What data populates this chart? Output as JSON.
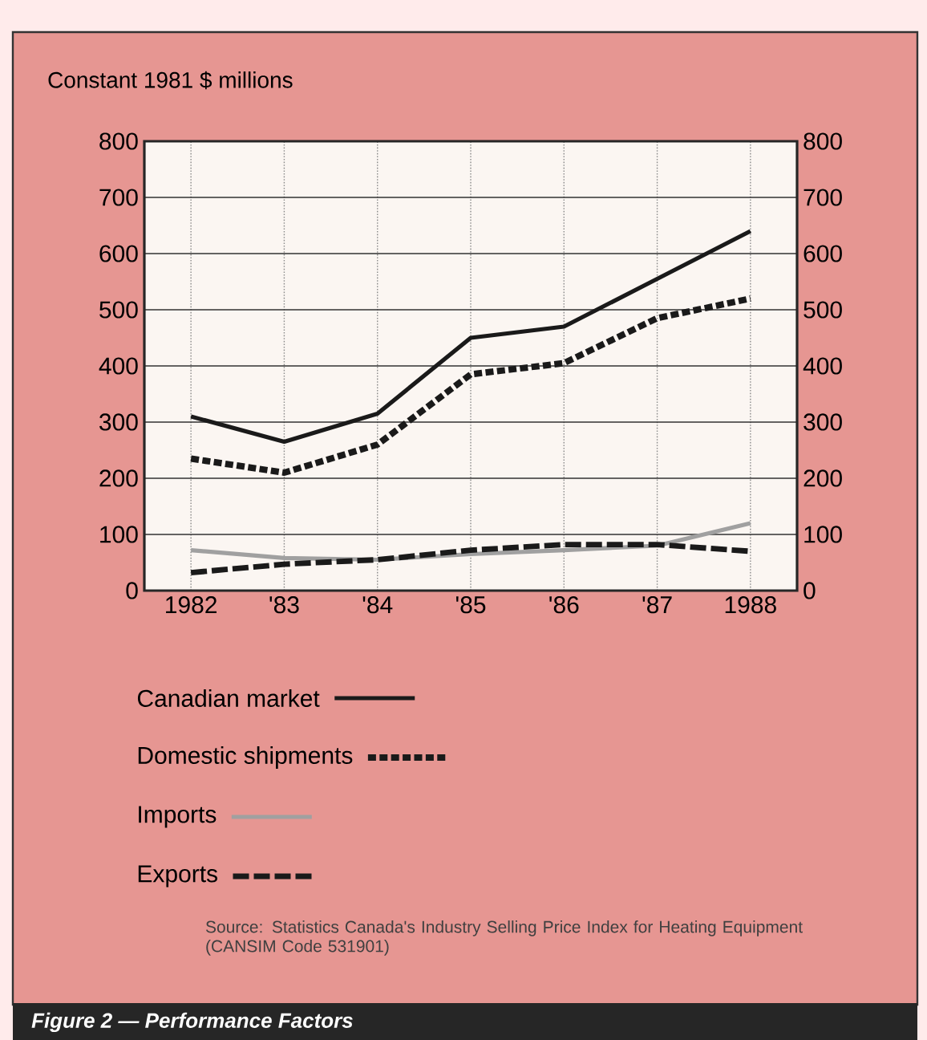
{
  "chart_data": {
    "type": "line",
    "title": "Figure 2 — Performance Factors",
    "ylabel": "Constant 1981 $ millions",
    "categories": [
      "1982",
      "'83",
      "'84",
      "'85",
      "'86",
      "'87",
      "1988"
    ],
    "series": [
      {
        "name": "Canadian market",
        "color": "#1a1a1a",
        "line_style": "solid",
        "values": [
          310,
          265,
          315,
          450,
          470,
          555,
          640
        ]
      },
      {
        "name": "Domestic shipments",
        "color": "#1a1a1a",
        "line_style": "dotted",
        "values": [
          235,
          210,
          260,
          385,
          405,
          485,
          520
        ]
      },
      {
        "name": "Imports",
        "color": "#a0a0a0",
        "line_style": "solid",
        "values": [
          72,
          58,
          55,
          65,
          72,
          80,
          120
        ]
      },
      {
        "name": "Exports",
        "color": "#1a1a1a",
        "line_style": "dashed",
        "values": [
          32,
          47,
          55,
          72,
          82,
          82,
          70
        ]
      }
    ],
    "ylim": [
      0,
      800
    ],
    "yticks": [
      0,
      100,
      200,
      300,
      400,
      500,
      600,
      700,
      800
    ],
    "y2lim": [
      0,
      800
    ],
    "y2ticks": [
      0,
      100,
      200,
      300,
      400,
      500,
      600,
      700,
      800
    ],
    "grid": true,
    "legend": "bottom",
    "marker": "none",
    "annotations": [
      "Source: Statistics Canada's Industry Selling Price Index for Heating Equipment (CANSIM Code 531901)"
    ]
  }
}
